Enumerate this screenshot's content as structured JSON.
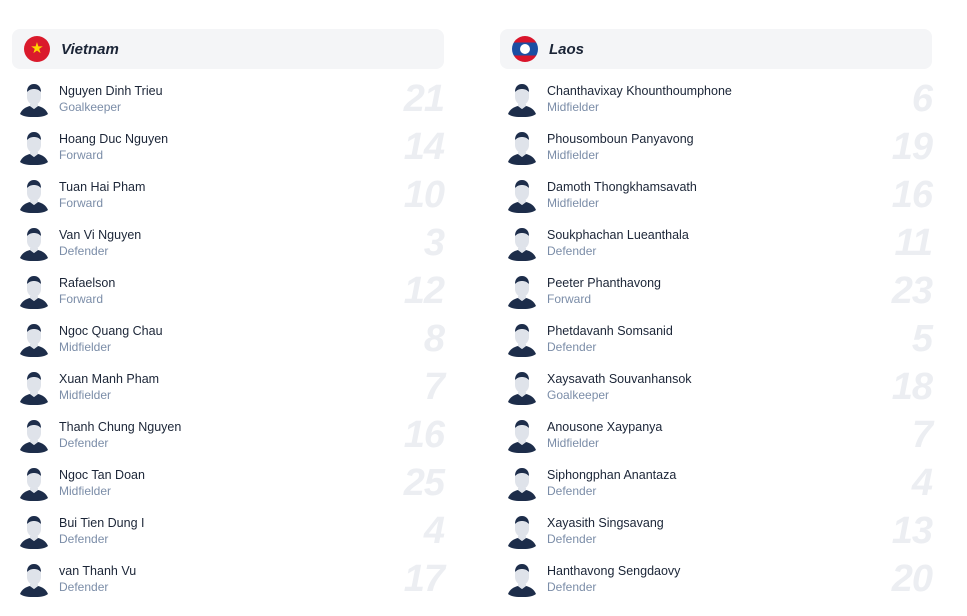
{
  "teams": [
    {
      "name": "Vietnam",
      "flag": "vietnam-flag",
      "players": [
        {
          "name": "Nguyen Dinh Trieu",
          "position": "Goalkeeper",
          "number": "21"
        },
        {
          "name": "Hoang Duc Nguyen",
          "position": "Forward",
          "number": "14"
        },
        {
          "name": "Tuan Hai Pham",
          "position": "Forward",
          "number": "10"
        },
        {
          "name": "Van Vi Nguyen",
          "position": "Defender",
          "number": "3"
        },
        {
          "name": "Rafaelson",
          "position": "Forward",
          "number": "12"
        },
        {
          "name": "Ngoc Quang Chau",
          "position": "Midfielder",
          "number": "8"
        },
        {
          "name": "Xuan Manh Pham",
          "position": "Midfielder",
          "number": "7"
        },
        {
          "name": "Thanh Chung Nguyen",
          "position": "Defender",
          "number": "16"
        },
        {
          "name": "Ngoc Tan Doan",
          "position": "Midfielder",
          "number": "25"
        },
        {
          "name": "Bui Tien Dung I",
          "position": "Defender",
          "number": "4"
        },
        {
          "name": "van Thanh Vu",
          "position": "Defender",
          "number": "17"
        }
      ]
    },
    {
      "name": "Laos",
      "flag": "laos-flag",
      "players": [
        {
          "name": "Chanthavixay Khounthoumphone",
          "position": "Midfielder",
          "number": "6"
        },
        {
          "name": "Phousomboun Panyavong",
          "position": "Midfielder",
          "number": "19"
        },
        {
          "name": "Damoth Thongkhamsavath",
          "position": "Midfielder",
          "number": "16"
        },
        {
          "name": "Soukphachan Lueanthala",
          "position": "Defender",
          "number": "11"
        },
        {
          "name": "Peeter Phanthavong",
          "position": "Forward",
          "number": "23"
        },
        {
          "name": "Phetdavanh Somsanid",
          "position": "Defender",
          "number": "5"
        },
        {
          "name": "Xaysavath Souvanhansok",
          "position": "Goalkeeper",
          "number": "18"
        },
        {
          "name": "Anousone Xaypanya",
          "position": "Midfielder",
          "number": "7"
        },
        {
          "name": "Siphongphan Anantaza",
          "position": "Defender",
          "number": "4"
        },
        {
          "name": "Xayasith Singsavang",
          "position": "Defender",
          "number": "13"
        },
        {
          "name": "Hanthavong Sengdaovy",
          "position": "Defender",
          "number": "20"
        }
      ]
    }
  ],
  "colors": {
    "text": "#1b2537",
    "muted": "#7b8da8",
    "header_bg": "#f4f5f7",
    "number": "#eceef2"
  }
}
